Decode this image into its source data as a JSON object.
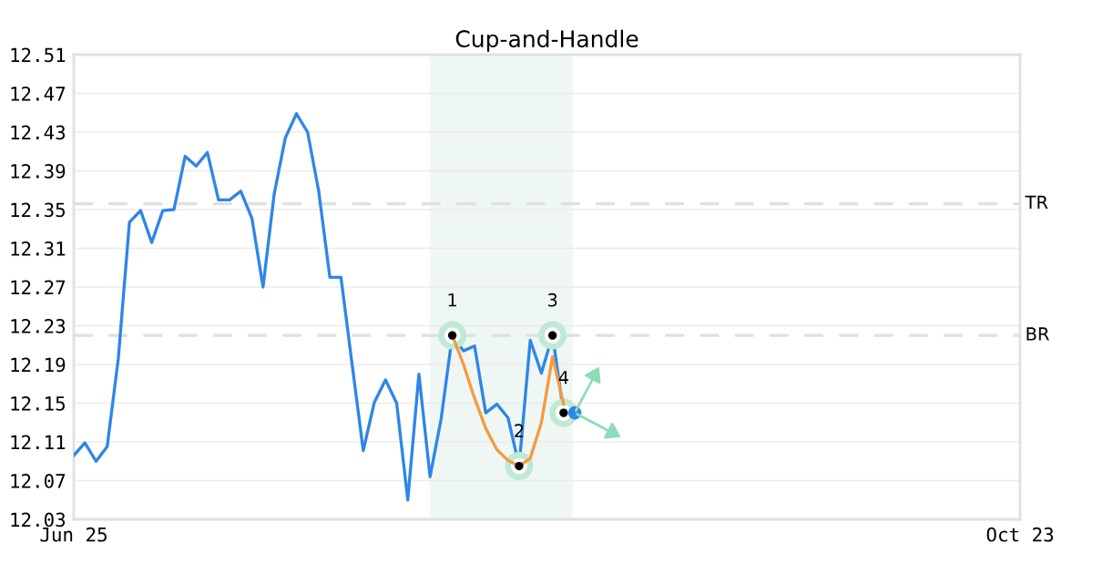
{
  "chart_data": {
    "type": "line",
    "title": "Cup-and-Handle",
    "categories": [
      "Jun 25",
      null,
      null,
      null,
      null,
      null,
      null,
      null,
      null,
      null,
      null,
      null,
      null,
      null,
      null,
      null,
      null,
      null,
      null,
      null,
      null,
      null,
      null,
      null,
      null,
      null,
      null,
      null,
      null,
      null,
      null,
      null,
      null,
      null,
      null,
      null,
      null,
      null,
      null,
      null,
      null,
      null,
      null,
      null,
      null,
      null,
      null,
      null,
      null,
      null,
      null,
      null,
      null,
      null,
      null,
      null,
      null,
      null,
      null,
      null,
      null,
      null,
      null,
      null,
      null,
      null,
      null,
      null,
      null,
      null,
      null,
      null,
      null,
      null,
      null,
      null,
      null,
      null,
      null,
      null,
      null,
      null,
      null,
      null,
      null,
      "Oct 23"
    ],
    "series": [
      {
        "color": "#2e86e8",
        "marker": "none",
        "values": [
          12.096,
          12.109,
          12.09,
          12.105,
          12.196,
          12.337,
          12.349,
          12.316,
          12.349,
          12.35,
          12.405,
          12.395,
          12.409,
          12.36,
          12.36,
          12.369,
          12.341,
          12.27,
          12.366,
          12.424,
          12.449,
          12.43,
          12.369,
          12.28,
          12.28,
          12.19,
          12.101,
          12.151,
          12.174,
          12.15,
          12.05,
          12.18,
          12.074,
          12.134,
          12.22,
          12.204,
          12.209,
          12.14,
          12.149,
          12.135,
          12.085,
          12.215,
          12.181,
          12.22,
          12.14,
          null,
          null,
          null,
          null,
          null,
          null,
          null,
          null,
          null,
          null,
          null,
          null,
          null,
          null,
          null,
          null,
          null,
          null,
          null,
          null,
          null,
          null,
          null,
          null,
          null,
          null,
          null,
          null,
          null,
          null,
          null,
          null,
          null,
          null,
          null,
          null,
          null,
          null,
          null,
          null,
          null
        ]
      },
      {
        "type": "line",
        "color": "#f59a42",
        "marker": "none",
        "values": [
          null,
          null,
          null,
          null,
          null,
          null,
          null,
          null,
          null,
          null,
          null,
          null,
          null,
          null,
          null,
          null,
          null,
          null,
          null,
          null,
          null,
          null,
          null,
          null,
          null,
          null,
          null,
          null,
          null,
          null,
          null,
          null,
          null,
          null,
          12.22,
          12.19,
          12.155,
          12.124,
          12.102,
          12.091,
          12.085,
          12.093,
          12.13,
          12.198,
          12.149,
          null,
          null,
          null,
          null,
          null,
          null,
          null,
          null,
          null,
          null,
          null,
          null,
          null,
          null,
          null,
          null,
          null,
          null,
          null,
          null,
          null,
          null,
          null,
          null,
          null,
          null,
          null,
          null,
          null,
          null,
          null,
          null,
          null,
          null,
          null,
          null,
          null,
          null,
          null,
          null,
          null
        ]
      },
      {
        "type": "scatter",
        "name": "1",
        "color": "#000000",
        "marker": "circle",
        "values": [
          null,
          null,
          null,
          null,
          null,
          null,
          null,
          null,
          null,
          null,
          null,
          null,
          null,
          null,
          null,
          null,
          null,
          null,
          null,
          null,
          null,
          null,
          null,
          null,
          null,
          null,
          null,
          null,
          null,
          null,
          null,
          null,
          null,
          null,
          12.22,
          null,
          null,
          null,
          null,
          null,
          null,
          null,
          null,
          null,
          null,
          null,
          null,
          null,
          null,
          null,
          null,
          null,
          null,
          null,
          null,
          null,
          null,
          null,
          null,
          null,
          null,
          null,
          null,
          null,
          null,
          null,
          null,
          null,
          null,
          null,
          null,
          null,
          null,
          null,
          null,
          null,
          null,
          null,
          null,
          null,
          null,
          null,
          null,
          null,
          null,
          null
        ]
      },
      {
        "type": "scatter",
        "name": "2",
        "color": "#000000",
        "marker": "circle",
        "values": [
          null,
          null,
          null,
          null,
          null,
          null,
          null,
          null,
          null,
          null,
          null,
          null,
          null,
          null,
          null,
          null,
          null,
          null,
          null,
          null,
          null,
          null,
          null,
          null,
          null,
          null,
          null,
          null,
          null,
          null,
          null,
          null,
          null,
          null,
          null,
          null,
          null,
          null,
          null,
          null,
          12.085,
          null,
          null,
          null,
          null,
          null,
          null,
          null,
          null,
          null,
          null,
          null,
          null,
          null,
          null,
          null,
          null,
          null,
          null,
          null,
          null,
          null,
          null,
          null,
          null,
          null,
          null,
          null,
          null,
          null,
          null,
          null,
          null,
          null,
          null,
          null,
          null,
          null,
          null,
          null,
          null,
          null,
          null,
          null,
          null,
          null
        ]
      },
      {
        "type": "scatter",
        "name": "3",
        "color": "#000000",
        "marker": "circle",
        "values": [
          null,
          null,
          null,
          null,
          null,
          null,
          null,
          null,
          null,
          null,
          null,
          null,
          null,
          null,
          null,
          null,
          null,
          null,
          null,
          null,
          null,
          null,
          null,
          null,
          null,
          null,
          null,
          null,
          null,
          null,
          null,
          null,
          null,
          null,
          null,
          null,
          null,
          null,
          null,
          null,
          null,
          null,
          null,
          12.22,
          null,
          null,
          null,
          null,
          null,
          null,
          null,
          null,
          null,
          null,
          null,
          null,
          null,
          null,
          null,
          null,
          null,
          null,
          null,
          null,
          null,
          null,
          null,
          null,
          null,
          null,
          null,
          null,
          null,
          null,
          null,
          null,
          null,
          null,
          null,
          null,
          null,
          null,
          null,
          null,
          null,
          null
        ]
      },
      {
        "type": "scatter",
        "name": "4",
        "color": "#000000",
        "marker": "circle",
        "values": [
          null,
          null,
          null,
          null,
          null,
          null,
          null,
          null,
          null,
          null,
          null,
          null,
          null,
          null,
          null,
          null,
          null,
          null,
          null,
          null,
          null,
          null,
          null,
          null,
          null,
          null,
          null,
          null,
          null,
          null,
          null,
          null,
          null,
          null,
          null,
          null,
          null,
          null,
          null,
          null,
          null,
          null,
          null,
          null,
          12.14,
          null,
          null,
          null,
          null,
          null,
          null,
          null,
          null,
          null,
          null,
          null,
          null,
          null,
          null,
          null,
          null,
          null,
          null,
          null,
          null,
          null,
          null,
          null,
          null,
          null,
          null,
          null,
          null,
          null,
          null,
          null,
          null,
          null,
          null,
          null,
          null,
          null,
          null,
          null,
          null,
          null
        ]
      },
      {
        "type": "scatter",
        "color": "#2e86e8",
        "marker": "circle",
        "values": [
          null,
          null,
          null,
          null,
          null,
          null,
          null,
          null,
          null,
          null,
          null,
          null,
          null,
          null,
          null,
          null,
          null,
          null,
          null,
          null,
          null,
          null,
          null,
          null,
          null,
          null,
          null,
          null,
          null,
          null,
          null,
          null,
          null,
          null,
          null,
          null,
          null,
          null,
          null,
          null,
          null,
          null,
          null,
          null,
          null,
          12.14,
          null,
          null,
          null,
          null,
          null,
          null,
          null,
          null,
          null,
          null,
          null,
          null,
          null,
          null,
          null,
          null,
          null,
          null,
          null,
          null,
          null,
          null,
          null,
          null,
          null,
          null,
          null,
          null,
          null,
          null,
          null,
          null,
          null,
          null,
          null,
          null,
          null,
          null,
          null,
          null
        ]
      }
    ],
    "ylim": [
      12.03,
      12.51
    ],
    "yticks": [
      12.03,
      12.07,
      12.11,
      12.15,
      12.19,
      12.23,
      12.27,
      12.31,
      12.35,
      12.39,
      12.43,
      12.47,
      12.51
    ],
    "ref_lines": [
      {
        "axis": "y",
        "value": 12.356,
        "label": "TR",
        "color": "#e0e0e0",
        "line_style": "dashed"
      },
      {
        "axis": "y",
        "value": 12.22,
        "label": "BR",
        "color": "#e0e0e0",
        "line_style": "dashed"
      }
    ],
    "grid": "y"
  }
}
